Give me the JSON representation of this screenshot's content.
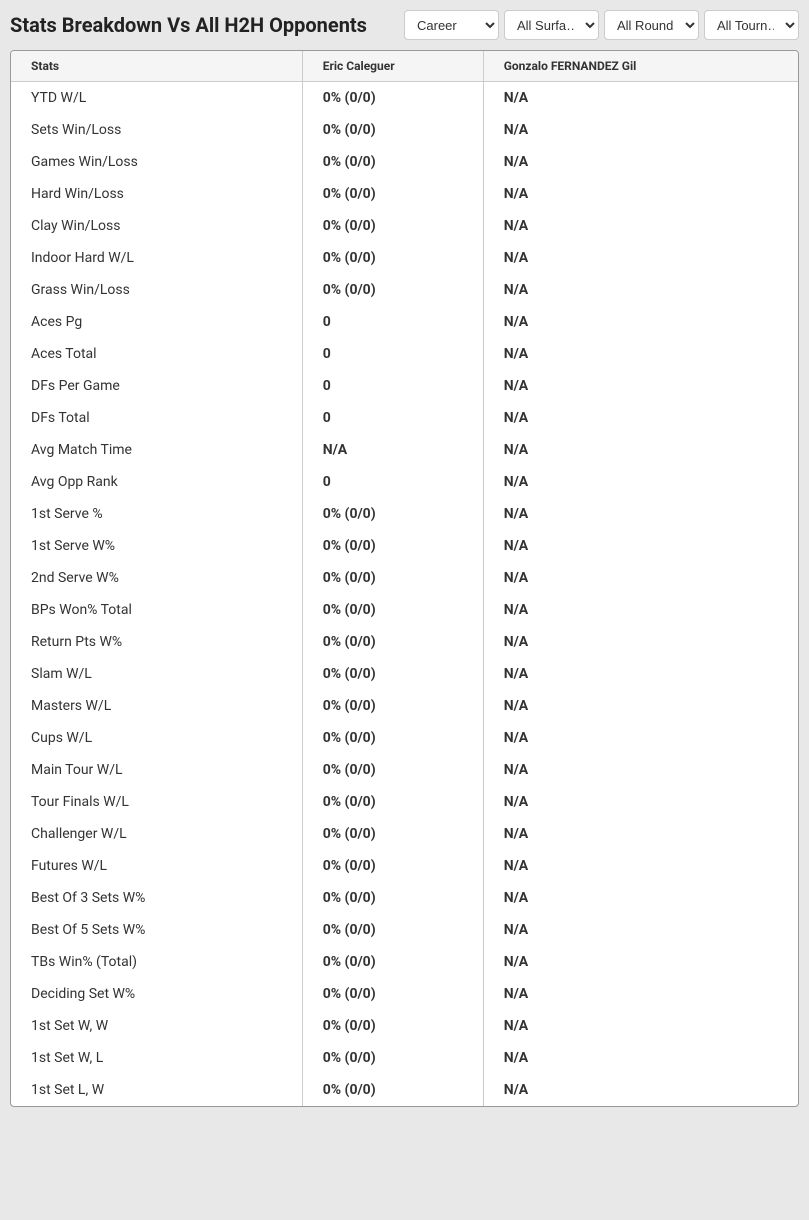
{
  "title": "Stats Breakdown Vs All H2H Opponents",
  "filters": {
    "period": {
      "selected": "Career",
      "options": [
        "Career"
      ]
    },
    "surface": {
      "selected": "All Surfa…",
      "options": [
        "All Surfa…"
      ]
    },
    "rounds": {
      "selected": "All Rounds",
      "options": [
        "All Rounds"
      ]
    },
    "tournaments": {
      "selected": "All Tourn…",
      "options": [
        "All Tourn…"
      ]
    }
  },
  "columns": {
    "stats": "Stats",
    "player1": "Eric Caleguer",
    "player2": "Gonzalo FERNANDEZ Gil"
  },
  "rows": [
    {
      "stat": "YTD W/L",
      "p1": "0% (0/0)",
      "p2": "N/A"
    },
    {
      "stat": "Sets Win/Loss",
      "p1": "0% (0/0)",
      "p2": "N/A"
    },
    {
      "stat": "Games Win/Loss",
      "p1": "0% (0/0)",
      "p2": "N/A"
    },
    {
      "stat": "Hard Win/Loss",
      "p1": "0% (0/0)",
      "p2": "N/A"
    },
    {
      "stat": "Clay Win/Loss",
      "p1": "0% (0/0)",
      "p2": "N/A"
    },
    {
      "stat": "Indoor Hard W/L",
      "p1": "0% (0/0)",
      "p2": "N/A"
    },
    {
      "stat": "Grass Win/Loss",
      "p1": "0% (0/0)",
      "p2": "N/A"
    },
    {
      "stat": "Aces Pg",
      "p1": "0",
      "p2": "N/A"
    },
    {
      "stat": "Aces Total",
      "p1": "0",
      "p2": "N/A"
    },
    {
      "stat": "DFs Per Game",
      "p1": "0",
      "p2": "N/A"
    },
    {
      "stat": "DFs Total",
      "p1": "0",
      "p2": "N/A"
    },
    {
      "stat": "Avg Match Time",
      "p1": "N/A",
      "p2": "N/A"
    },
    {
      "stat": "Avg Opp Rank",
      "p1": "0",
      "p2": "N/A"
    },
    {
      "stat": "1st Serve %",
      "p1": "0% (0/0)",
      "p2": "N/A"
    },
    {
      "stat": "1st Serve W%",
      "p1": "0% (0/0)",
      "p2": "N/A"
    },
    {
      "stat": "2nd Serve W%",
      "p1": "0% (0/0)",
      "p2": "N/A"
    },
    {
      "stat": "BPs Won% Total",
      "p1": "0% (0/0)",
      "p2": "N/A"
    },
    {
      "stat": "Return Pts W%",
      "p1": "0% (0/0)",
      "p2": "N/A"
    },
    {
      "stat": "Slam W/L",
      "p1": "0% (0/0)",
      "p2": "N/A"
    },
    {
      "stat": "Masters W/L",
      "p1": "0% (0/0)",
      "p2": "N/A"
    },
    {
      "stat": "Cups W/L",
      "p1": "0% (0/0)",
      "p2": "N/A"
    },
    {
      "stat": "Main Tour W/L",
      "p1": "0% (0/0)",
      "p2": "N/A"
    },
    {
      "stat": "Tour Finals W/L",
      "p1": "0% (0/0)",
      "p2": "N/A"
    },
    {
      "stat": "Challenger W/L",
      "p1": "0% (0/0)",
      "p2": "N/A"
    },
    {
      "stat": "Futures W/L",
      "p1": "0% (0/0)",
      "p2": "N/A"
    },
    {
      "stat": "Best Of 3 Sets W%",
      "p1": "0% (0/0)",
      "p2": "N/A"
    },
    {
      "stat": "Best Of 5 Sets W%",
      "p1": "0% (0/0)",
      "p2": "N/A"
    },
    {
      "stat": "TBs Win% (Total)",
      "p1": "0% (0/0)",
      "p2": "N/A"
    },
    {
      "stat": "Deciding Set W%",
      "p1": "0% (0/0)",
      "p2": "N/A"
    },
    {
      "stat": "1st Set W, W",
      "p1": "0% (0/0)",
      "p2": "N/A"
    },
    {
      "stat": "1st Set W, L",
      "p1": "0% (0/0)",
      "p2": "N/A"
    },
    {
      "stat": "1st Set L, W",
      "p1": "0% (0/0)",
      "p2": "N/A"
    }
  ],
  "styling": {
    "background_color": "#e8e8e8",
    "table_background": "#ffffff",
    "header_background": "#f5f5f5",
    "border_color": "#cccccc",
    "outer_border_color": "#999999",
    "text_color": "#333333",
    "title_color": "#222222",
    "title_fontsize": 20,
    "header_fontsize": 12,
    "cell_fontsize": 14
  }
}
